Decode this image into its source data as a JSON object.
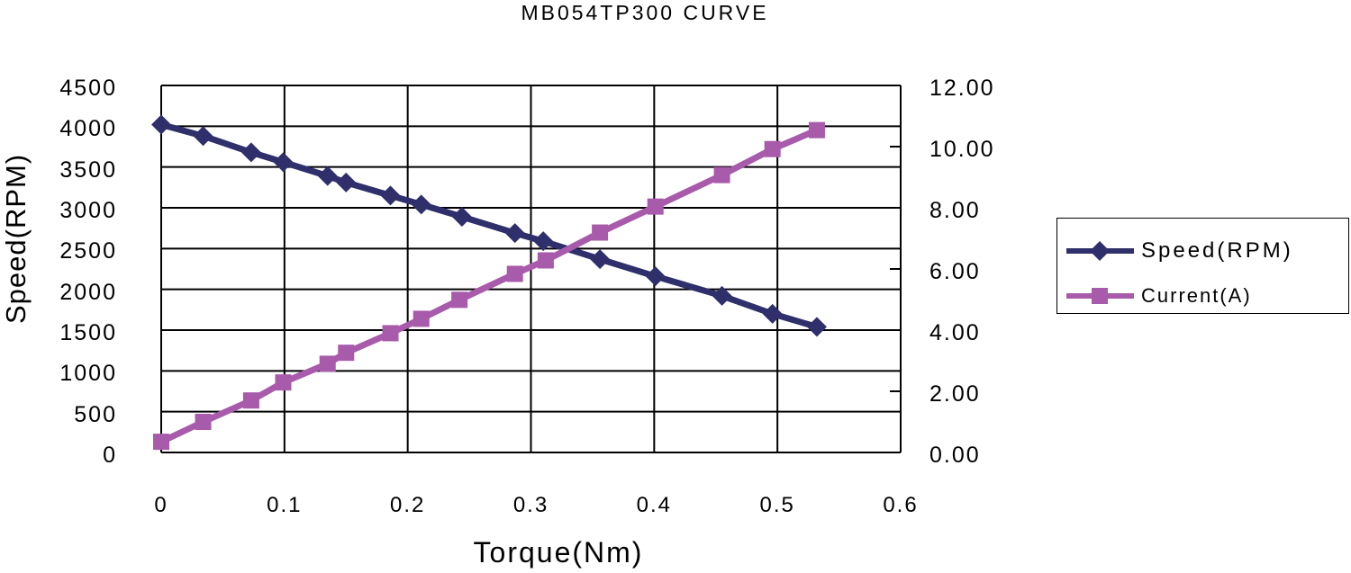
{
  "chart_data": {
    "type": "line",
    "title": "MB054TP300 CURVE",
    "xlabel": "Torque(Nm)",
    "ylabel": "Speed(RPM)",
    "y2label": "",
    "xlim": [
      0,
      0.6
    ],
    "ylim": [
      0,
      4500
    ],
    "y2lim": [
      0,
      12
    ],
    "grid": true,
    "legend_position": "right",
    "x_ticks": [
      "0",
      "0.1",
      "0.2",
      "0.3",
      "0.4",
      "0.5",
      "0.6"
    ],
    "y_ticks": [
      "4500",
      "4000",
      "3500",
      "3000",
      "2500",
      "2000",
      "1500",
      "1000",
      "500",
      "0"
    ],
    "y2_ticks": [
      "12.00",
      "10.00",
      "8.00",
      "6.00",
      "4.00",
      "2.00",
      "0.00"
    ],
    "series": [
      {
        "name": "Speed(RPM)",
        "axis": "left",
        "color": "#2e2f6b",
        "marker": "diamond",
        "x": [
          0.0,
          0.034,
          0.073,
          0.099,
          0.135,
          0.15,
          0.186,
          0.211,
          0.244,
          0.287,
          0.31,
          0.356,
          0.401,
          0.455,
          0.496,
          0.532
        ],
        "values": [
          4020,
          3880,
          3680,
          3560,
          3390,
          3310,
          3150,
          3040,
          2890,
          2690,
          2590,
          2370,
          2160,
          1920,
          1700,
          1540
        ]
      },
      {
        "name": "Current(A)",
        "axis": "right",
        "color": "#a85aab",
        "marker": "square",
        "x": [
          0.0,
          0.034,
          0.073,
          0.099,
          0.135,
          0.15,
          0.186,
          0.211,
          0.242,
          0.287,
          0.312,
          0.356,
          0.401,
          0.455,
          0.496,
          0.532
        ],
        "values": [
          0.35,
          1.0,
          1.7,
          2.29,
          2.9,
          3.26,
          3.9,
          4.37,
          4.99,
          5.84,
          6.28,
          7.19,
          8.04,
          9.07,
          9.92,
          10.54
        ]
      }
    ]
  },
  "legend": {
    "items": [
      {
        "label": "Speed(RPM)",
        "color": "#2e2f6b",
        "marker": "diamond"
      },
      {
        "label": "Current(A)",
        "color": "#a85aab",
        "marker": "square"
      }
    ]
  }
}
